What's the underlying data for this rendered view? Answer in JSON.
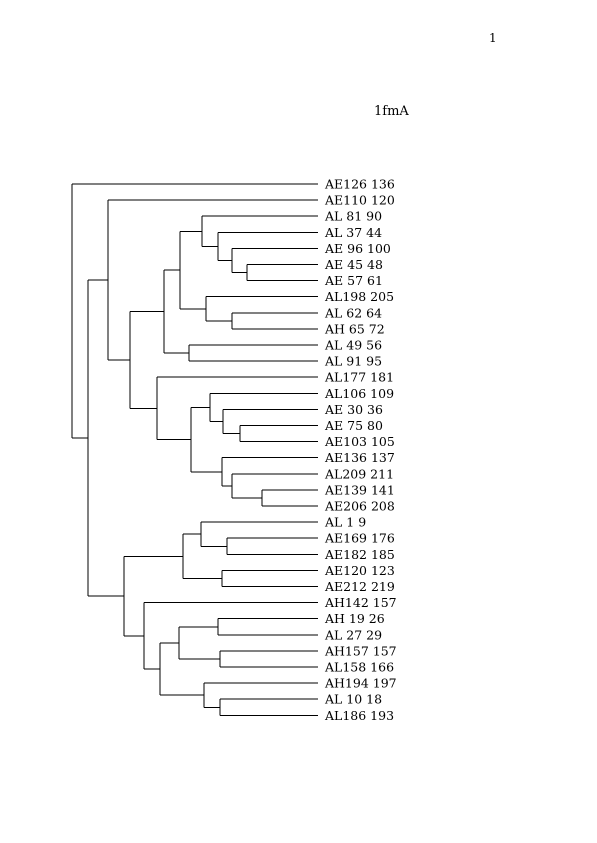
{
  "page": {
    "number": "1"
  },
  "title": "1fmA",
  "leaves": [
    "AE126 136",
    "AE110 120",
    "AL 81 90",
    "AL 37 44",
    "AE 96 100",
    "AE 45 48",
    "AE 57 61",
    "AL198 205",
    "AL 62 64",
    "AH 65 72",
    "AL 49 56",
    "AL 91 95",
    "AL177 181",
    "AL106 109",
    "AE 30 36",
    "AE 75 80",
    "AE103 105",
    "AE136 137",
    "AL209 211",
    "AE139 141",
    "AE206 208",
    "AL 1 9",
    "AE169 176",
    "AE182 185",
    "AE120 123",
    "AE212 219",
    "AH142 157",
    "AH 19 26",
    "AL 27 29",
    "AH157 157",
    "AL158 166",
    "AH194 197",
    "AL 10 18",
    "AL186 193"
  ]
}
